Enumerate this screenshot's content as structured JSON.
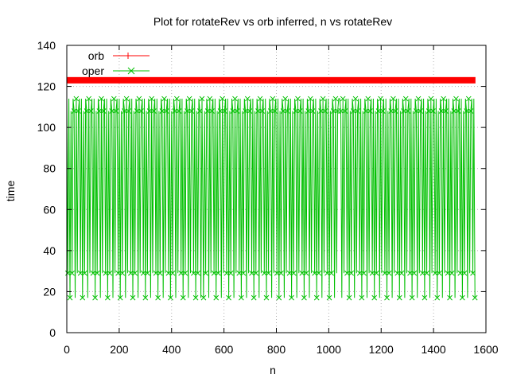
{
  "chart_data": {
    "type": "line",
    "title": "Plot for rotateRev vs orb inferred, n vs rotateRev",
    "xlabel": "n",
    "ylabel": "time",
    "xlim": [
      0,
      1600
    ],
    "ylim": [
      0,
      140
    ],
    "xticks": [
      0,
      200,
      400,
      600,
      800,
      1000,
      1200,
      1400,
      1600
    ],
    "yticks": [
      0,
      20,
      40,
      60,
      80,
      100,
      120,
      140
    ],
    "grid": true,
    "legend_position": "top-left",
    "series": [
      {
        "name": "orb",
        "color": "#ff0000",
        "marker": "+",
        "pattern": "constant",
        "value": 123,
        "x_range": [
          0,
          1560
        ]
      },
      {
        "name": "oper",
        "color": "#00c000",
        "marker": "x",
        "pattern": "periodic oscillation between 17, 29, 108 and 114",
        "levels": [
          17,
          29,
          108,
          114
        ],
        "x_range": [
          0,
          1560
        ],
        "segment_breaks": [
          0,
          520,
          1040,
          1560
        ]
      }
    ]
  }
}
